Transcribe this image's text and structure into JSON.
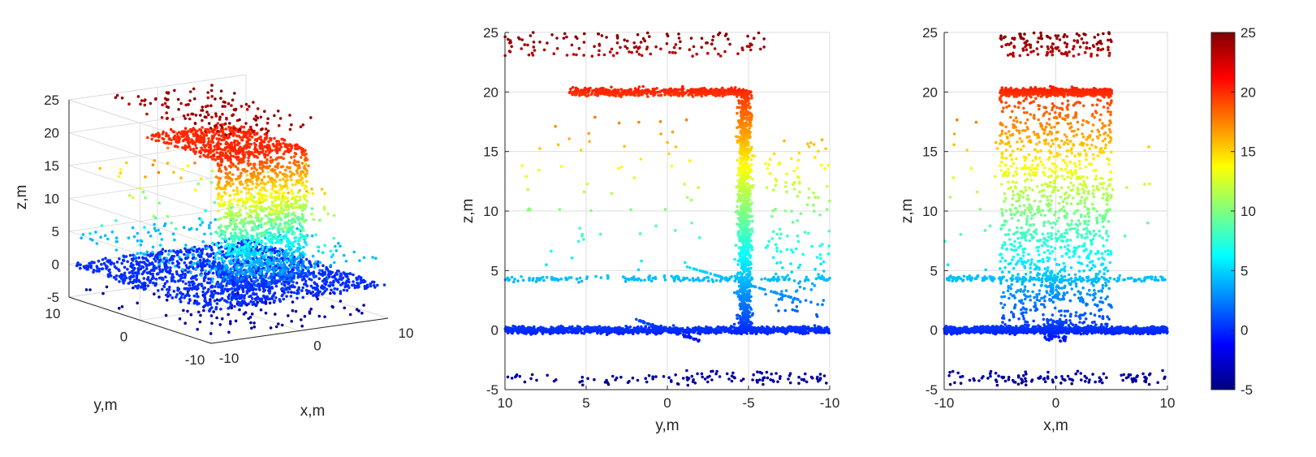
{
  "colormap": "jet",
  "chart_data": [
    {
      "type": "scatter",
      "projection": "3d",
      "xlabel": "x,m",
      "ylabel": "y,m",
      "zlabel": "z,m",
      "xlim": [
        -10,
        10
      ],
      "ylim": [
        -10,
        10
      ],
      "zlim": [
        -5,
        25
      ],
      "x_ticks": [
        "-10",
        "0",
        "10"
      ],
      "y_ticks": [
        "-10",
        "0",
        "10"
      ],
      "z_ticks": [
        "-5",
        "0",
        "5",
        "10",
        "15",
        "20",
        "25"
      ],
      "grid": true,
      "structure": {
        "ground_plane_z": 0,
        "lower_plane_z": -4,
        "building_x": [
          -5,
          5
        ],
        "building_y": [
          -5,
          -4.5
        ],
        "building_z": [
          0,
          20
        ],
        "roof_z": 20,
        "roof_y_range": [
          -5,
          6
        ],
        "upper_scatter_z": [
          23,
          25
        ],
        "plane_z_5": 4.3
      }
    },
    {
      "type": "scatter",
      "projection": "side",
      "xlabel": "y,m",
      "ylabel": "z,m",
      "xlim": [
        10,
        -10
      ],
      "ylim": [
        -5,
        25
      ],
      "x_ticks": [
        "10",
        "5",
        "0",
        "-5",
        "-10"
      ],
      "y_ticks": [
        "-5",
        "0",
        "5",
        "10",
        "15",
        "20",
        "25"
      ],
      "grid": true
    },
    {
      "type": "scatter",
      "projection": "front",
      "xlabel": "x,m",
      "ylabel": "z,m",
      "xlim": [
        -10,
        10
      ],
      "ylim": [
        -5,
        25
      ],
      "x_ticks": [
        "-10",
        "0",
        "10"
      ],
      "y_ticks": [
        "-5",
        "0",
        "5",
        "10",
        "15",
        "20",
        "25"
      ],
      "grid": true
    },
    {
      "type": "colorbar",
      "clim": [
        -5,
        25
      ],
      "ticks": [
        "-5",
        "0",
        "5",
        "10",
        "15",
        "20",
        "25"
      ],
      "colormap": "jet"
    }
  ]
}
